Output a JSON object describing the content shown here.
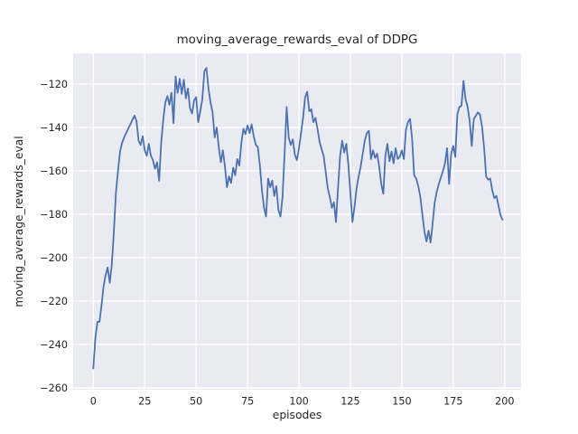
{
  "figure": {
    "title": "moving_average_rewards_eval of DDPG",
    "xlabel": "episodes",
    "ylabel": "moving_average_rewards_eval"
  },
  "chart_data": {
    "type": "line",
    "title": "moving_average_rewards_eval of DDPG",
    "xlabel": "episodes",
    "ylabel": "moving_average_rewards_eval",
    "x_start": 0,
    "x_step": 1,
    "xlim": [
      -9.8,
      208
    ],
    "ylim": [
      -260.8,
      -105.8
    ],
    "xticks": [
      0,
      25,
      50,
      75,
      100,
      125,
      150,
      175,
      200
    ],
    "yticks": [
      -260,
      -240,
      -220,
      -200,
      -180,
      -160,
      -140,
      -120
    ],
    "grid": true,
    "legend_position": "none",
    "plot_bg_color": "#EAEAF2",
    "grid_color": "#FFFFFF",
    "text_color": "#262626",
    "series": [
      {
        "name": "moving_average_rewards_eval",
        "color": "#4C72B0",
        "values": [
          -251,
          -237,
          -229.5,
          -229.5,
          -222,
          -213,
          -208,
          -204.5,
          -211.5,
          -203,
          -188,
          -170,
          -160,
          -151,
          -147,
          -144.5,
          -142.5,
          -140.5,
          -138.5,
          -136.5,
          -134.5,
          -137,
          -146,
          -148,
          -144,
          -150.5,
          -153,
          -147.5,
          -153,
          -155,
          -159,
          -156,
          -164.5,
          -147,
          -136.5,
          -128.5,
          -125.5,
          -129.5,
          -124,
          -138,
          -116.5,
          -124,
          -117.5,
          -124.5,
          -118,
          -126.5,
          -122,
          -131,
          -133.5,
          -127.5,
          -126,
          -137.5,
          -132.5,
          -127,
          -114,
          -112.5,
          -122,
          -128.5,
          -133,
          -144.5,
          -140,
          -149,
          -156,
          -150.5,
          -158,
          -167.5,
          -162.5,
          -165.5,
          -158.5,
          -162,
          -154.5,
          -157.5,
          -147,
          -140.5,
          -143,
          -139,
          -142.5,
          -138.5,
          -144,
          -148,
          -149,
          -157.5,
          -169,
          -177,
          -181,
          -163.5,
          -167.5,
          -164.5,
          -171.5,
          -167,
          -178,
          -181,
          -172,
          -152,
          -130.5,
          -144.5,
          -148,
          -145.5,
          -152.5,
          -155,
          -149.5,
          -142.5,
          -135.5,
          -126,
          -123.5,
          -132.5,
          -131.5,
          -137.5,
          -135.5,
          -140.5,
          -146.5,
          -150,
          -153,
          -160.5,
          -168,
          -172,
          -177,
          -174.5,
          -183.5,
          -167.5,
          -153,
          -146,
          -151.5,
          -147.5,
          -157,
          -170,
          -183.5,
          -176.5,
          -168,
          -162.5,
          -158,
          -152,
          -146,
          -142.5,
          -141.5,
          -154.5,
          -150.5,
          -154,
          -152,
          -158,
          -166,
          -170.5,
          -153,
          -147.5,
          -155.5,
          -151,
          -156.5,
          -149.5,
          -154.5,
          -153.5,
          -150.5,
          -154.5,
          -141,
          -137.5,
          -136,
          -145,
          -162,
          -163.5,
          -167,
          -172,
          -180,
          -188,
          -192.5,
          -187.5,
          -193,
          -184,
          -174.5,
          -169.5,
          -166,
          -163,
          -160,
          -156.5,
          -149.5,
          -166,
          -152,
          -148.5,
          -153.5,
          -134,
          -130.5,
          -130,
          -118.5,
          -127,
          -130.5,
          -137,
          -148.5,
          -136,
          -134.5,
          -133,
          -134,
          -139.5,
          -149,
          -162.5,
          -164,
          -163.5,
          -169,
          -172.5,
          -171.5,
          -176,
          -180.5,
          -182.5
        ]
      }
    ]
  }
}
